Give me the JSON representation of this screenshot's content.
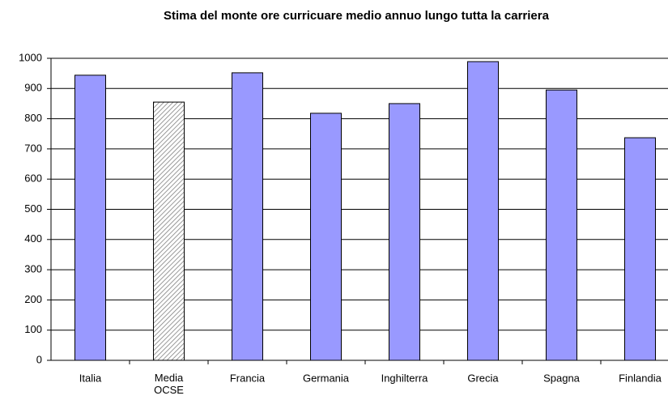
{
  "chart_data": {
    "type": "bar",
    "title": "Stima del monte ore curricuare medio annuo lungo tutta la carriera",
    "categories": [
      "Italia",
      "Media OCSE",
      "Francia",
      "Germania",
      "Inghilterra",
      "Grecia",
      "Spagna",
      "Finlandia"
    ],
    "values": [
      944,
      855,
      952,
      818,
      850,
      989,
      895,
      737
    ],
    "colors": [
      "#9999ff",
      "#c0c0c0",
      "#9999ff",
      "#9999ff",
      "#9999ff",
      "#9999ff",
      "#9999ff",
      "#9999ff"
    ],
    "hatched": [
      false,
      true,
      false,
      false,
      false,
      false,
      false,
      false
    ],
    "ylim": [
      0,
      1000
    ],
    "yticks": [
      0,
      100,
      200,
      300,
      400,
      500,
      600,
      700,
      800,
      900,
      1000
    ],
    "grid": true
  }
}
